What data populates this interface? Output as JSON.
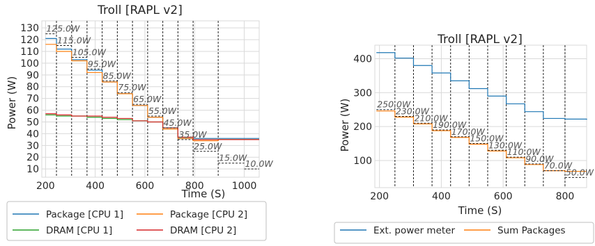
{
  "chart_data": [
    {
      "type": "line",
      "title": "Troll [RAPL v2]",
      "xlabel": "Time (S)",
      "ylabel": "Power (W)",
      "xlim": [
        185,
        1060
      ],
      "ylim": [
        3,
        136
      ],
      "xticks": [
        200,
        400,
        600,
        800,
        1000
      ],
      "yticks": [
        10,
        20,
        30,
        40,
        50,
        60,
        70,
        80,
        90,
        100,
        110,
        120,
        130
      ],
      "grid": true,
      "legend_position": "bottom",
      "legend_columns": 2,
      "dashed_vertical_lines_x": [
        244,
        305,
        367,
        428,
        489,
        550,
        611,
        672,
        733,
        794,
        895
      ],
      "cap_steps": [
        {
          "x_start": 200,
          "x_end": 244,
          "value": 125,
          "label": "125.0W"
        },
        {
          "x_start": 244,
          "x_end": 305,
          "value": 115,
          "label": "115.0W"
        },
        {
          "x_start": 305,
          "x_end": 367,
          "value": 105,
          "label": "105.0W"
        },
        {
          "x_start": 367,
          "x_end": 428,
          "value": 95,
          "label": "95.0W"
        },
        {
          "x_start": 428,
          "x_end": 489,
          "value": 85,
          "label": "85.0W"
        },
        {
          "x_start": 489,
          "x_end": 550,
          "value": 75,
          "label": "75.0W"
        },
        {
          "x_start": 550,
          "x_end": 611,
          "value": 65,
          "label": "65.0W"
        },
        {
          "x_start": 611,
          "x_end": 672,
          "value": 55,
          "label": "55.0W"
        },
        {
          "x_start": 672,
          "x_end": 733,
          "value": 45,
          "label": "45.0W"
        },
        {
          "x_start": 733,
          "x_end": 794,
          "value": 35,
          "label": "35.0W"
        },
        {
          "x_start": 794,
          "x_end": 895,
          "value": 25,
          "label": "25.0W"
        },
        {
          "x_start": 895,
          "x_end": 1000,
          "value": 15,
          "label": "15.0W"
        },
        {
          "x_start": 1000,
          "x_end": 1060,
          "value": 10,
          "label": "10.0W"
        }
      ],
      "series": [
        {
          "name": "Package [CPU 1]",
          "color": "#1f77b4",
          "x": [
            200,
            244,
            305,
            367,
            428,
            489,
            550,
            611,
            672,
            733,
            794,
            895,
            1000,
            1060
          ],
          "values": [
            121,
            112,
            103,
            94,
            84,
            74,
            64,
            54,
            45,
            36,
            36,
            36,
            36,
            36
          ]
        },
        {
          "name": "Package [CPU 2]",
          "color": "#ff7f0e",
          "x": [
            200,
            244,
            305,
            367,
            428,
            489,
            550,
            611,
            672,
            733,
            794,
            895,
            1000,
            1060
          ],
          "values": [
            116,
            110,
            102,
            92,
            84,
            74,
            64,
            54,
            44,
            36,
            34,
            35,
            35,
            35
          ]
        },
        {
          "name": "DRAM [CPU 1]",
          "color": "#2ca02c",
          "x": [
            200,
            244,
            305,
            367,
            428,
            489,
            550,
            611,
            672,
            733,
            794,
            895,
            1000,
            1060
          ],
          "values": [
            56,
            55,
            55,
            54,
            53,
            52,
            51,
            50,
            45,
            37,
            35,
            35,
            35,
            35
          ]
        },
        {
          "name": "DRAM [CPU 2]",
          "color": "#d62728",
          "x": [
            200,
            244,
            305,
            367,
            428,
            489,
            550,
            611,
            672,
            733,
            794,
            895,
            1000,
            1060
          ],
          "values": [
            57,
            56,
            55,
            55,
            54,
            53,
            51,
            50,
            45,
            37,
            35,
            35,
            35,
            35
          ]
        }
      ]
    },
    {
      "type": "line",
      "title": "Troll [RAPL v2]",
      "xlabel": "Time (S)",
      "ylabel": "Power (W)",
      "xlim": [
        185,
        870
      ],
      "ylim": [
        20,
        440
      ],
      "xticks": [
        200,
        400,
        600,
        800
      ],
      "yticks": [
        100,
        200,
        300,
        400
      ],
      "grid": true,
      "legend_position": "bottom",
      "legend_columns": 2,
      "dashed_vertical_lines_x": [
        250,
        310,
        370,
        430,
        490,
        550,
        610,
        670,
        730,
        800
      ],
      "cap_steps": [
        {
          "x_start": 190,
          "x_end": 250,
          "value": 250,
          "label": "250.0W"
        },
        {
          "x_start": 250,
          "x_end": 310,
          "value": 230,
          "label": "230.0W"
        },
        {
          "x_start": 310,
          "x_end": 370,
          "value": 210,
          "label": "210.0W"
        },
        {
          "x_start": 370,
          "x_end": 430,
          "value": 190,
          "label": "190.0W"
        },
        {
          "x_start": 430,
          "x_end": 490,
          "value": 170,
          "label": "170.0W"
        },
        {
          "x_start": 490,
          "x_end": 550,
          "value": 150,
          "label": "150.0W"
        },
        {
          "x_start": 550,
          "x_end": 610,
          "value": 130,
          "label": "130.0W"
        },
        {
          "x_start": 610,
          "x_end": 670,
          "value": 110,
          "label": "110.0W"
        },
        {
          "x_start": 670,
          "x_end": 730,
          "value": 90,
          "label": "90.0W"
        },
        {
          "x_start": 730,
          "x_end": 800,
          "value": 70,
          "label": "70.0W"
        },
        {
          "x_start": 800,
          "x_end": 870,
          "value": 50,
          "label": "50.0W"
        }
      ],
      "series": [
        {
          "name": "Ext. power meter",
          "color": "#1f77b4",
          "x": [
            190,
            250,
            310,
            370,
            430,
            490,
            550,
            610,
            670,
            730,
            800,
            870
          ],
          "values": [
            418,
            402,
            380,
            358,
            335,
            312,
            290,
            267,
            244,
            224,
            222,
            220
          ]
        },
        {
          "name": "Sum Packages",
          "color": "#ff7f0e",
          "x": [
            190,
            250,
            310,
            370,
            430,
            490,
            550,
            610,
            670,
            730,
            800,
            870
          ],
          "values": [
            246,
            228,
            208,
            188,
            168,
            148,
            128,
            108,
            88,
            70,
            68,
            68
          ]
        }
      ]
    }
  ]
}
